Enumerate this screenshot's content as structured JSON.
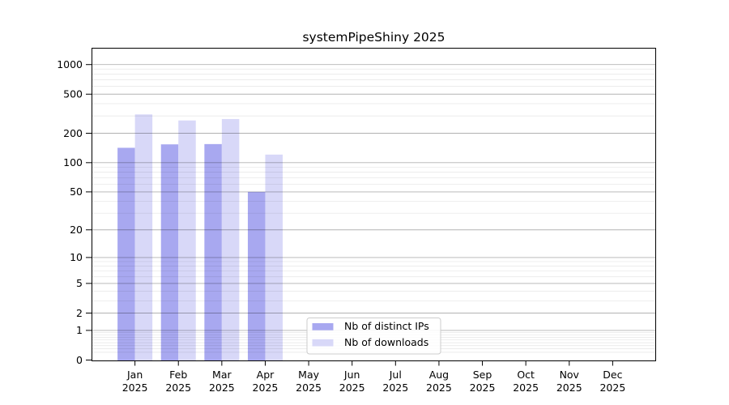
{
  "chart_data": {
    "type": "bar",
    "title": "systemPipeShiny 2025",
    "months": [
      "Jan",
      "Feb",
      "Mar",
      "Apr",
      "May",
      "Jun",
      "Jul",
      "Aug",
      "Sep",
      "Oct",
      "Nov",
      "Dec"
    ],
    "year_label": "2025",
    "categories": [
      "Jan 2025",
      "Feb 2025",
      "Mar 2025",
      "Apr 2025",
      "May 2025",
      "Jun 2025",
      "Jul 2025",
      "Aug 2025",
      "Sep 2025",
      "Oct 2025",
      "Nov 2025",
      "Dec 2025"
    ],
    "series": [
      {
        "key": "ips",
        "name": "Nb of distinct IPs",
        "color": "#a8a8f0",
        "values": [
          142,
          154,
          155,
          50,
          0,
          0,
          0,
          0,
          0,
          0,
          0,
          0
        ]
      },
      {
        "key": "downloads",
        "name": "Nb of downloads",
        "color": "#d8d8f8",
        "values": [
          311,
          270,
          279,
          121,
          0,
          0,
          0,
          0,
          0,
          0,
          0,
          0
        ]
      }
    ],
    "y_axis": {
      "scale": "log1p",
      "tick_values": [
        1000,
        500,
        200,
        100,
        50,
        20,
        10,
        5,
        2,
        1,
        0
      ],
      "tick_labels": [
        "1000",
        "500",
        "200",
        "100",
        "50",
        "20",
        "10",
        "5",
        "2",
        "1",
        "0"
      ],
      "minor_grid_values": [
        0.2,
        0.3,
        0.4,
        0.5,
        0.6,
        0.7,
        0.8,
        0.9,
        3,
        4,
        6,
        7,
        8,
        9,
        30,
        40,
        60,
        70,
        80,
        90,
        300,
        400,
        600,
        700,
        800,
        900
      ],
      "major_grid_values": [
        1,
        2,
        5,
        10,
        20,
        50,
        100,
        200,
        500,
        1000
      ]
    },
    "xlabel": "",
    "ylabel": "",
    "legend_position": "inside-bottom-center",
    "grid": "on",
    "style": {
      "major_grid_color": "rgba(0,0,0,0.30)",
      "minor_grid_color": "rgba(0,0,0,0.10)",
      "axis_color": "#000000",
      "background": "#ffffff",
      "legend_border": "#cccccc",
      "legend_fill": "rgba(255,255,255,0.85)"
    }
  }
}
